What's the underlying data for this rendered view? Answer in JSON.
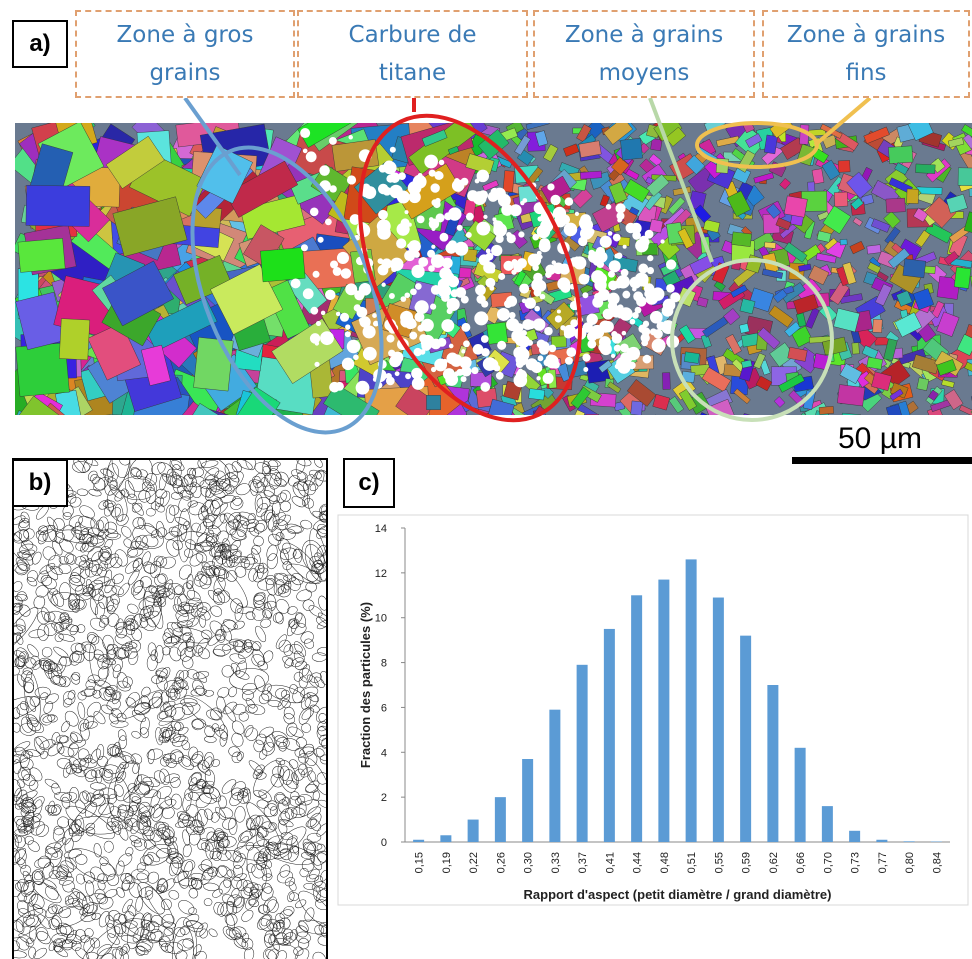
{
  "panels": {
    "a": "a)",
    "b": "b)",
    "c": "c)"
  },
  "zones": [
    "Zone à gros grains",
    "Carbure de titane",
    "Zone à grains moyens",
    "Zone à grains fins"
  ],
  "scale_bar": "50 µm",
  "chart_data": {
    "type": "bar",
    "x_label": "Rapport d'aspect (petit diamètre / grand diamètre)",
    "y_label": "Fraction des particules (%)",
    "categories": [
      "0,15",
      "0,19",
      "0,22",
      "0,26",
      "0,30",
      "0,33",
      "0,37",
      "0,41",
      "0,44",
      "0,48",
      "0,51",
      "0,55",
      "0,59",
      "0,62",
      "0,66",
      "0,70",
      "0,73",
      "0,77",
      "0,80",
      "0,84"
    ],
    "values": [
      0.1,
      0.3,
      1.0,
      2.0,
      3.7,
      5.9,
      7.9,
      9.5,
      11.0,
      11.7,
      12.6,
      10.9,
      9.2,
      7.0,
      4.2,
      1.6,
      0.5,
      0.1,
      0.03,
      0.02
    ],
    "color": "#5b9bd5",
    "ylim": [
      0,
      14
    ],
    "yticks": [
      0,
      2,
      4,
      6,
      8,
      10,
      12,
      14
    ]
  }
}
